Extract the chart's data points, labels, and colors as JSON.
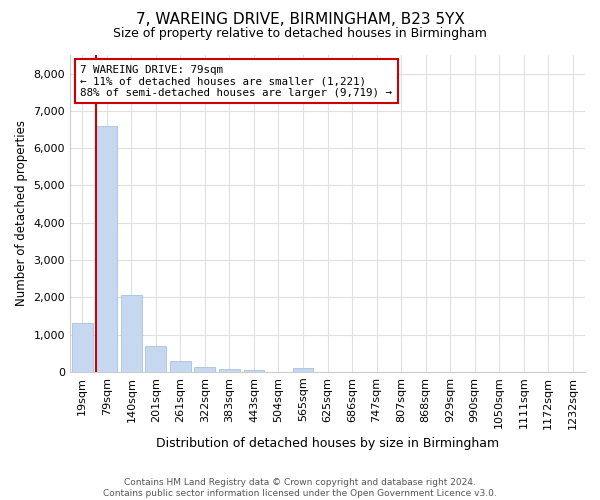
{
  "title1": "7, WAREING DRIVE, BIRMINGHAM, B23 5YX",
  "title2": "Size of property relative to detached houses in Birmingham",
  "xlabel": "Distribution of detached houses by size in Birmingham",
  "ylabel": "Number of detached properties",
  "footer1": "Contains HM Land Registry data © Crown copyright and database right 2024.",
  "footer2": "Contains public sector information licensed under the Open Government Licence v3.0.",
  "annotation_title": "7 WAREING DRIVE: 79sqm",
  "annotation_line2": "← 11% of detached houses are smaller (1,221)",
  "annotation_line3": "88% of semi-detached houses are larger (9,719) →",
  "bar_labels": [
    "19sqm",
    "79sqm",
    "140sqm",
    "201sqm",
    "261sqm",
    "322sqm",
    "383sqm",
    "443sqm",
    "504sqm",
    "565sqm",
    "625sqm",
    "686sqm",
    "747sqm",
    "807sqm",
    "868sqm",
    "929sqm",
    "990sqm",
    "1050sqm",
    "1111sqm",
    "1172sqm",
    "1232sqm"
  ],
  "bar_values": [
    1300,
    6600,
    2060,
    680,
    290,
    130,
    75,
    55,
    0,
    90,
    0,
    0,
    0,
    0,
    0,
    0,
    0,
    0,
    0,
    0,
    0
  ],
  "bar_color": "#c5d8f0",
  "bar_edge_color": "#9bbad8",
  "highlight_bar_index": 1,
  "annotation_box_color": "#ffffff",
  "annotation_box_edge": "#cc0000",
  "bg_color": "#ffffff",
  "plot_bg_color": "#ffffff",
  "grid_color": "#e0e0e0",
  "ylim": [
    0,
    8500
  ],
  "yticks": [
    0,
    1000,
    2000,
    3000,
    4000,
    5000,
    6000,
    7000,
    8000
  ],
  "vline_color": "#cc0000",
  "vline_linewidth": 1.5
}
